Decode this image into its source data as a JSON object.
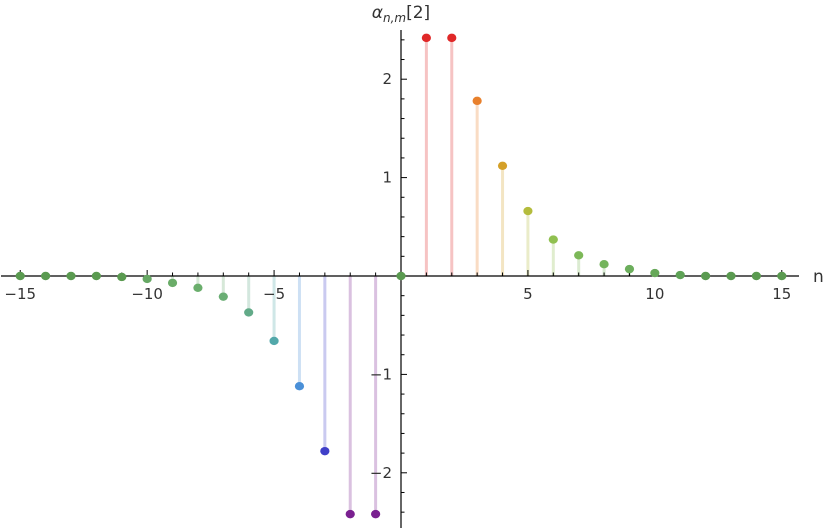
{
  "chart_data": {
    "type": "scatter",
    "style": "stem",
    "title": "",
    "xlabel": "n",
    "ylabel_parts": {
      "base": "α",
      "subscript": "n,m",
      "suffix": "[2]"
    },
    "xlim": [
      -15.6,
      15.6
    ],
    "ylim": [
      -2.5,
      2.5
    ],
    "xticks": [
      -15,
      -10,
      -5,
      5,
      10,
      15
    ],
    "xtick_labels": [
      "−15",
      "−10",
      "−5",
      "5",
      "10",
      "15"
    ],
    "yticks": [
      -2,
      -1,
      1,
      2
    ],
    "ytick_labels": [
      "−2",
      "−1",
      "1",
      "2"
    ],
    "grid": false,
    "legend": "none",
    "points": [
      {
        "x": -15,
        "y": 0.0,
        "color": "#5a9a50"
      },
      {
        "x": -14,
        "y": 0.0,
        "color": "#5a9a50"
      },
      {
        "x": -13,
        "y": 0.0,
        "color": "#5a9a50"
      },
      {
        "x": -12,
        "y": 0.0,
        "color": "#5a9a50"
      },
      {
        "x": -11,
        "y": -0.01,
        "color": "#5a9a50"
      },
      {
        "x": -10,
        "y": -0.03,
        "color": "#66a864"
      },
      {
        "x": -9,
        "y": -0.07,
        "color": "#6aac68"
      },
      {
        "x": -8,
        "y": -0.12,
        "color": "#6aae6c"
      },
      {
        "x": -7,
        "y": -0.21,
        "color": "#6aae74"
      },
      {
        "x": -6,
        "y": -0.37,
        "color": "#62aa88"
      },
      {
        "x": -5,
        "y": -0.66,
        "color": "#52a8aa"
      },
      {
        "x": -4,
        "y": -1.12,
        "color": "#4a90d8"
      },
      {
        "x": -3,
        "y": -1.78,
        "color": "#4040c8"
      },
      {
        "x": -2,
        "y": -2.42,
        "color": "#7a2090"
      },
      {
        "x": -1,
        "y": -2.42,
        "color": "#7a2090"
      },
      {
        "x": 0,
        "y": 0.0,
        "color": "#5a9a50"
      },
      {
        "x": 1,
        "y": 2.42,
        "color": "#e02828"
      },
      {
        "x": 2,
        "y": 2.42,
        "color": "#e02828"
      },
      {
        "x": 3,
        "y": 1.78,
        "color": "#e8802c"
      },
      {
        "x": 4,
        "y": 1.12,
        "color": "#d4a028"
      },
      {
        "x": 5,
        "y": 0.66,
        "color": "#b4bc3c"
      },
      {
        "x": 6,
        "y": 0.37,
        "color": "#90c050"
      },
      {
        "x": 7,
        "y": 0.21,
        "color": "#7cb858"
      },
      {
        "x": 8,
        "y": 0.12,
        "color": "#74b45c"
      },
      {
        "x": 9,
        "y": 0.07,
        "color": "#6cae5c"
      },
      {
        "x": 10,
        "y": 0.03,
        "color": "#66a858"
      },
      {
        "x": 11,
        "y": 0.01,
        "color": "#5ea256"
      },
      {
        "x": 12,
        "y": 0.0,
        "color": "#5a9a50"
      },
      {
        "x": 13,
        "y": 0.0,
        "color": "#5a9a50"
      },
      {
        "x": 14,
        "y": 0.0,
        "color": "#5a9a50"
      },
      {
        "x": 15,
        "y": 0.0,
        "color": "#5a9a50"
      }
    ]
  }
}
